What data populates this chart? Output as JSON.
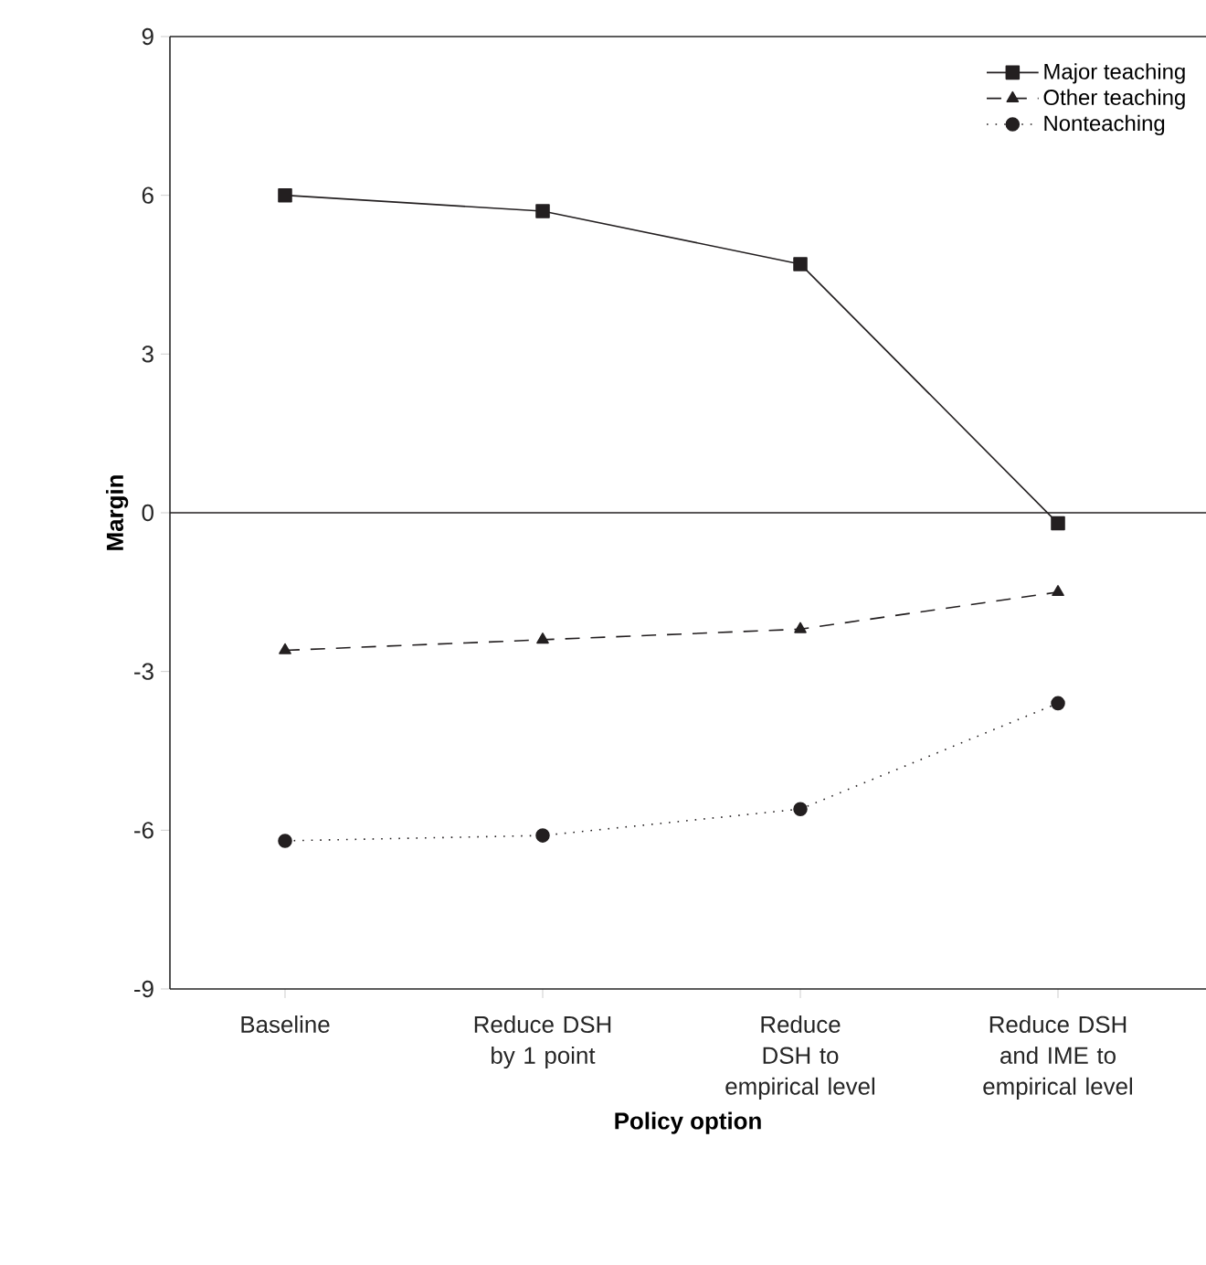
{
  "chart_data": {
    "type": "line",
    "xlabel": "Policy option",
    "ylabel": "Margin",
    "categories": [
      "Baseline",
      "Reduce DSH by 1 point",
      "Reduce DSH to empirical level",
      "Reduce DSH and IME to empirical level"
    ],
    "series": [
      {
        "name": "Major teaching",
        "color": "#231f20",
        "values": [
          6.0,
          5.7,
          4.7,
          -0.2
        ],
        "marker": "square",
        "line_style": "solid"
      },
      {
        "name": "Other teaching",
        "color": "#231f20",
        "values": [
          -2.6,
          -2.4,
          -2.2,
          -1.5
        ],
        "marker": "triangle",
        "line_style": "dashed"
      },
      {
        "name": "Nonteaching",
        "color": "#231f20",
        "values": [
          -6.2,
          -6.1,
          -5.6,
          -3.6
        ],
        "marker": "circle",
        "line_style": "dotted"
      }
    ],
    "ylim": [
      -9,
      9
    ],
    "yticks": [
      -9,
      -6,
      -3,
      0,
      3,
      6,
      9
    ],
    "ref_lines": [
      {
        "axis": "y",
        "value": 0,
        "color": "#231f20"
      }
    ],
    "grid": false,
    "legend": "top right"
  }
}
